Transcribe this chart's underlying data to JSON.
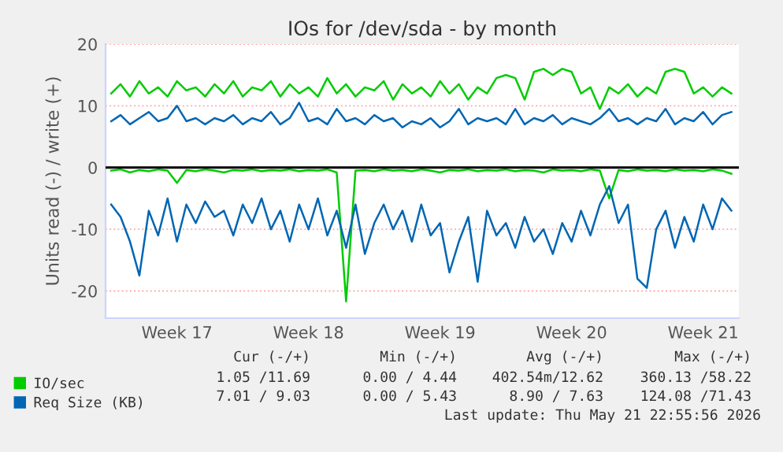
{
  "chart_data": {
    "type": "line",
    "title": "IOs for /dev/sda - by month",
    "ylabel": "Units read (-) / write (+)",
    "categories": [
      null,
      null,
      null,
      null,
      null,
      null,
      null,
      "Week 17",
      null,
      null,
      null,
      null,
      null,
      null,
      null,
      null,
      null,
      null,
      null,
      null,
      null,
      "Week 18",
      null,
      null,
      null,
      null,
      null,
      null,
      null,
      null,
      null,
      null,
      null,
      null,
      null,
      "Week 19",
      null,
      null,
      null,
      null,
      null,
      null,
      null,
      null,
      null,
      null,
      null,
      null,
      null,
      "Week 20",
      null,
      null,
      null,
      null,
      null,
      null,
      null,
      null,
      null,
      null,
      null,
      null,
      null,
      "Week 21",
      null,
      null,
      null
    ],
    "series": [
      {
        "name": "IO/sec",
        "color": "#00cc00",
        "values": [
          12,
          13.5,
          11.5,
          14,
          12,
          13,
          11.5,
          14,
          12.5,
          13,
          11.5,
          13.5,
          12,
          14,
          11.5,
          13,
          12.5,
          14,
          11.5,
          13.5,
          12,
          13,
          11.5,
          14.5,
          12,
          13.5,
          11.5,
          13,
          12.5,
          14,
          11,
          13.5,
          12,
          13,
          11.5,
          14,
          12,
          13.5,
          11,
          13,
          12,
          14.5,
          15,
          14.5,
          11,
          15.5,
          16,
          15,
          16,
          15.5,
          12,
          13,
          9.5,
          13,
          12,
          13.5,
          11.5,
          13,
          12,
          15.5,
          16,
          15.5,
          12,
          13,
          11.5,
          13,
          12
        ]
      },
      {
        "color": "#00cc00",
        "values": [
          -0.5,
          -0.3,
          -0.8,
          -0.4,
          -0.6,
          -0.3,
          -0.5,
          -2.5,
          -0.4,
          -0.6,
          -0.3,
          -0.5,
          -0.8,
          -0.4,
          -0.5,
          -0.3,
          -0.6,
          -0.4,
          -0.5,
          -0.3,
          -0.6,
          -0.4,
          -0.5,
          -0.3,
          -0.8,
          -21.7,
          -0.5,
          -0.4,
          -0.6,
          -0.3,
          -0.5,
          -0.4,
          -0.6,
          -0.3,
          -0.5,
          -0.8,
          -0.4,
          -0.5,
          -0.3,
          -0.6,
          -0.4,
          -0.5,
          -0.3,
          -0.6,
          -0.4,
          -0.5,
          -0.8,
          -0.3,
          -0.5,
          -0.4,
          -0.6,
          -0.3,
          -0.5,
          -5,
          -0.4,
          -0.6,
          -0.3,
          -0.5,
          -0.4,
          -0.6,
          -0.3,
          -0.5,
          -0.4,
          -0.6,
          -0.3,
          -0.5,
          -1
        ]
      },
      {
        "name": "Req Size (KB)",
        "color": "#0066b3",
        "values": [
          7.5,
          8.5,
          7,
          8,
          9,
          7.5,
          8,
          10,
          7.5,
          8,
          7,
          8,
          7.5,
          8.5,
          7,
          8,
          7.5,
          9,
          7,
          8,
          10.5,
          7.5,
          8,
          7,
          9.5,
          7.5,
          8,
          7,
          8.5,
          7.5,
          8,
          6.5,
          7.5,
          7,
          8,
          6.5,
          7.5,
          9.5,
          7,
          8,
          7.5,
          8,
          7,
          9.5,
          7,
          8,
          7.5,
          8.5,
          7,
          8,
          7.5,
          7,
          8,
          9.5,
          7.5,
          8,
          7,
          8,
          7.5,
          9.5,
          7,
          8,
          7.5,
          9,
          7,
          8.5,
          9
        ]
      },
      {
        "color": "#0066b3",
        "values": [
          -6,
          -8,
          -12,
          -17.5,
          -7,
          -11,
          -5,
          -12,
          -6,
          -9,
          -5.5,
          -8,
          -7,
          -11,
          -6,
          -9,
          -5,
          -10,
          -7,
          -12,
          -6,
          -10,
          -5,
          -11,
          -7,
          -13,
          -6,
          -14,
          -9,
          -6,
          -10,
          -7,
          -12,
          -6,
          -11,
          -9,
          -17,
          -12,
          -8,
          -18.5,
          -7,
          -11,
          -9,
          -13,
          -8,
          -12,
          -10,
          -14,
          -9,
          -12,
          -7,
          -11,
          -6,
          -3,
          -9,
          -6,
          -18,
          -19.5,
          -10,
          -7,
          -13,
          -8,
          -12,
          -6,
          -10,
          -5,
          -7
        ]
      }
    ],
    "ylim": [
      -24.4,
      20
    ],
    "yticks": [
      -20,
      -10,
      0,
      10,
      20
    ],
    "grid": "y",
    "legend": "bottom left",
    "ref_lines": [
      {
        "axis": "y",
        "value": 0,
        "color": "#000000"
      }
    ],
    "annotations": [
      "Cur (-/+)",
      "Min (-/+)",
      "Avg (-/+)",
      "Max (-/+)",
      "1.05 /11.69",
      "0.00 / 4.44",
      "402.54m/12.62",
      "360.13 /58.22",
      "7.01 / 9.03",
      "0.00 / 5.43",
      "8.90 / 7.63",
      "124.08 /71.43",
      "Last update: Thu May 21 22:55:56 2026"
    ]
  }
}
